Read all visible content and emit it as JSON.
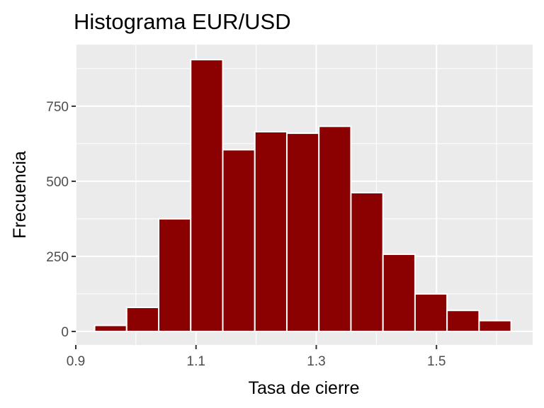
{
  "chart_data": {
    "type": "bar",
    "title": "Histograma EUR/USD",
    "xlabel": "Tasa de cierre",
    "ylabel": "Frecuencia",
    "xlim": [
      0.9,
      1.66
    ],
    "ylim": [
      -45,
      955
    ],
    "x_ticks": [
      0.9,
      1.1,
      1.3,
      1.5
    ],
    "x_tick_labels": [
      "0.9",
      "1.1",
      "1.3",
      "1.5"
    ],
    "x_minor_ticks": [
      1.0,
      1.2,
      1.4,
      1.6
    ],
    "y_ticks": [
      0,
      250,
      500,
      750
    ],
    "y_tick_labels": [
      "0",
      "250",
      "500",
      "750"
    ],
    "y_minor_ticks": [
      125,
      375,
      625,
      875
    ],
    "bin_width": 0.0533,
    "bins": [
      {
        "x0": 0.9313,
        "x1": 0.9846,
        "count": 20
      },
      {
        "x0": 0.9846,
        "x1": 1.0379,
        "count": 80
      },
      {
        "x0": 1.0379,
        "x1": 1.0912,
        "count": 375
      },
      {
        "x0": 1.0912,
        "x1": 1.1445,
        "count": 905
      },
      {
        "x0": 1.1445,
        "x1": 1.1978,
        "count": 605
      },
      {
        "x0": 1.1978,
        "x1": 1.2511,
        "count": 665
      },
      {
        "x0": 1.2511,
        "x1": 1.3044,
        "count": 660
      },
      {
        "x0": 1.3044,
        "x1": 1.3577,
        "count": 683
      },
      {
        "x0": 1.3577,
        "x1": 1.411,
        "count": 462
      },
      {
        "x0": 1.411,
        "x1": 1.4643,
        "count": 257
      },
      {
        "x0": 1.4643,
        "x1": 1.5176,
        "count": 125
      },
      {
        "x0": 1.5176,
        "x1": 1.5709,
        "count": 70
      },
      {
        "x0": 1.5709,
        "x1": 1.6242,
        "count": 36
      }
    ],
    "colors": {
      "bar_fill": "#8B0000",
      "bar_outline": "#FFFFFF",
      "panel_background": "#EBEBEB",
      "grid": "#FFFFFF",
      "tick_label": "#4D4D4D",
      "tick_mark": "#333333"
    },
    "grid": true,
    "legend": "none"
  }
}
